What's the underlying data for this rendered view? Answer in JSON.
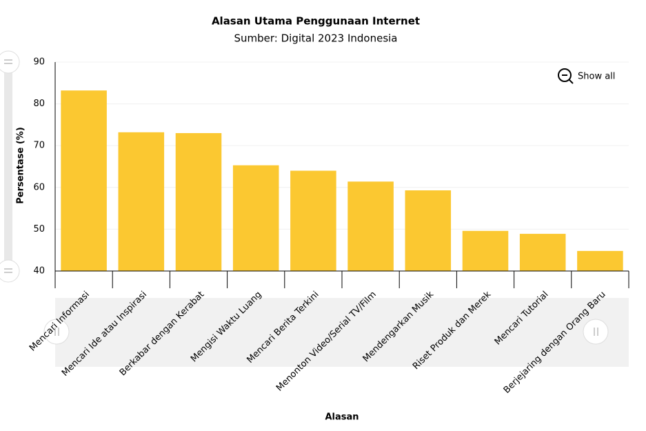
{
  "chart_data": {
    "type": "bar",
    "title": "Alasan Utama Penggunaan Internet",
    "subtitle": "Sumber: Digital 2023 Indonesia",
    "x_label": "Alasan",
    "y_label": "Persentase (%)",
    "categories": [
      "Mencari Informasi",
      "Mencari Ide atau Inspirasi",
      "Berkabar dengan Kerabat",
      "Mengisi Waktu Luang",
      "Mencari Berita Terkini",
      "Menonton Video/Serial TV/Film",
      "Mendengarkan Musik",
      "Riset Produk dan Merek",
      "Mencari Tutorial",
      "Berjejaring dengan Orang Baru"
    ],
    "values": [
      83.2,
      73.2,
      73.0,
      65.3,
      64.0,
      61.4,
      59.3,
      49.6,
      48.9,
      44.8
    ],
    "color": "#fbc831",
    "ylim": [
      40,
      90
    ],
    "yticks": [
      40,
      50,
      60,
      70,
      80,
      90
    ],
    "grid": true
  },
  "ui": {
    "zoom_button": "Show all"
  }
}
